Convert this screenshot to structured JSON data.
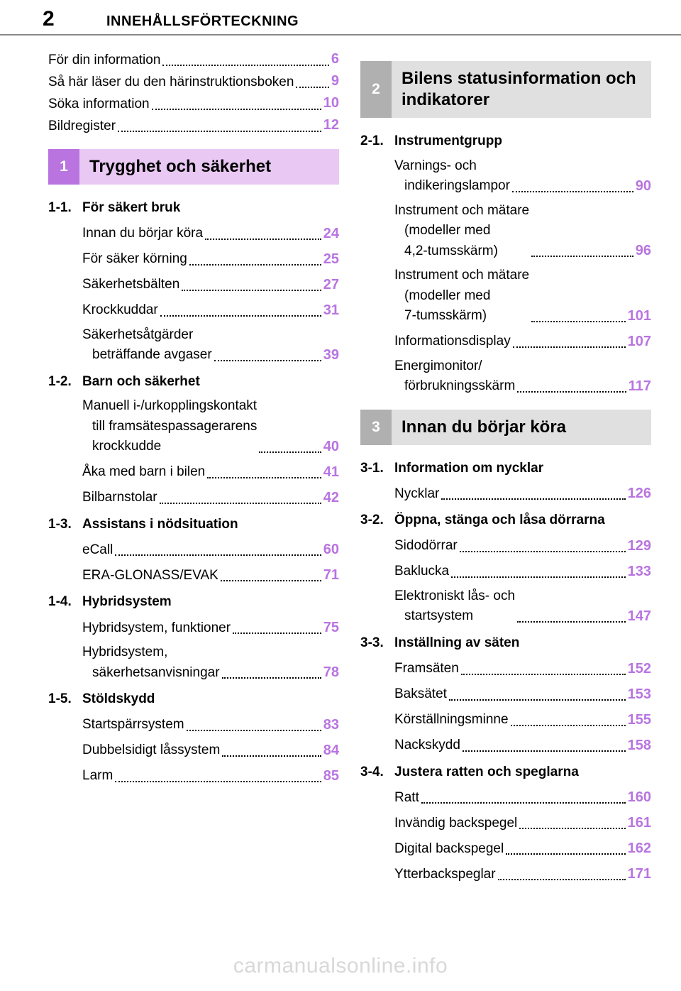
{
  "page_number": "2",
  "doc_title": "INNEHÅLLSFÖRTECKNING",
  "accent_color": "#b974e0",
  "section_num_bg": "#b0b0b0",
  "section_title_bg": "#e0e0e0",
  "sec1_num_bg": "#b974e0",
  "sec1_title_bg": "#e9c9f3",
  "intro": [
    {
      "label": "För din information",
      "page": "6"
    },
    {
      "label": "Så här läser du den här",
      "page": ""
    },
    {
      "label_cont": "instruktionsboken",
      "page": "9"
    },
    {
      "label": "Söka information",
      "page": "10"
    },
    {
      "label": "Bildregister",
      "page": "12"
    }
  ],
  "sections_left": [
    {
      "num": "1",
      "title": "Trygghet och säkerhet",
      "is_primary": true,
      "subsections": [
        {
          "num": "1-1.",
          "title": "För säkert bruk",
          "items": [
            {
              "label": "Innan du börjar köra",
              "page": "24"
            },
            {
              "label": "För säker körning",
              "page": "25"
            },
            {
              "label": "Säkerhetsbälten",
              "page": "27"
            },
            {
              "label": "Krockkuddar",
              "page": "31"
            },
            {
              "label": "Säkerhetsåtgärder\nbeträffande avgaser",
              "page": "39"
            }
          ]
        },
        {
          "num": "1-2.",
          "title": "Barn och säkerhet",
          "items": [
            {
              "label": "Manuell i-/urkopplingskontakt\ntill framsätespassagerarens\nkrockkudde",
              "page": "40"
            },
            {
              "label": "Åka med barn i bilen",
              "page": "41"
            },
            {
              "label": "Bilbarnstolar",
              "page": "42"
            }
          ]
        },
        {
          "num": "1-3.",
          "title": "Assistans i nödsituation",
          "items": [
            {
              "label": "eCall",
              "page": "60"
            },
            {
              "label": "ERA-GLONASS/EVAK",
              "page": "71"
            }
          ]
        },
        {
          "num": "1-4.",
          "title": "Hybridsystem",
          "items": [
            {
              "label": "Hybridsystem, funktioner",
              "page": "75"
            },
            {
              "label": "Hybridsystem,\nsäkerhetsanvisningar",
              "page": "78"
            }
          ]
        },
        {
          "num": "1-5.",
          "title": "Stöldskydd",
          "items": [
            {
              "label": "Startspärrsystem",
              "page": "83"
            },
            {
              "label": "Dubbelsidigt låssystem",
              "page": "84"
            },
            {
              "label": "Larm",
              "page": "85"
            }
          ]
        }
      ]
    }
  ],
  "sections_right": [
    {
      "num": "2",
      "title": "Bilens statusinformation och indikatorer",
      "is_primary": false,
      "subsections": [
        {
          "num": "2-1.",
          "title": "Instrumentgrupp",
          "items": [
            {
              "label": "Varnings- och\nindikeringslampor",
              "page": "90"
            },
            {
              "label": "Instrument och mätare\n(modeller med\n4,2-tumsskärm)",
              "page": "96"
            },
            {
              "label": "Instrument och mätare\n(modeller med\n7-tumsskärm)",
              "page": "101"
            },
            {
              "label": "Informationsdisplay",
              "page": "107"
            },
            {
              "label": "Energimonitor/\nförbrukningsskärm",
              "page": "117"
            }
          ]
        }
      ]
    },
    {
      "num": "3",
      "title": "Innan du börjar köra",
      "is_primary": false,
      "subsections": [
        {
          "num": "3-1.",
          "title": "Information om nycklar",
          "items": [
            {
              "label": "Nycklar",
              "page": "126"
            }
          ]
        },
        {
          "num": "3-2.",
          "title": "Öppna, stänga och låsa dörrarna",
          "items": [
            {
              "label": "Sidodörrar",
              "page": "129"
            },
            {
              "label": "Baklucka",
              "page": "133"
            },
            {
              "label": "Elektroniskt lås- och\nstartsystem",
              "page": "147"
            }
          ]
        },
        {
          "num": "3-3.",
          "title": "Inställning av säten",
          "items": [
            {
              "label": "Framsäten",
              "page": "152"
            },
            {
              "label": "Baksätet",
              "page": "153"
            },
            {
              "label": "Körställningsminne",
              "page": "155"
            },
            {
              "label": "Nackskydd",
              "page": "158"
            }
          ]
        },
        {
          "num": "3-4.",
          "title": "Justera ratten och speglarna",
          "items": [
            {
              "label": "Ratt",
              "page": "160"
            },
            {
              "label": "Invändig backspegel",
              "page": "161"
            },
            {
              "label": "Digital backspegel",
              "page": "162"
            },
            {
              "label": "Ytterbackspeglar",
              "page": "171"
            }
          ]
        }
      ]
    }
  ],
  "footer": "carmanualsonline.info"
}
